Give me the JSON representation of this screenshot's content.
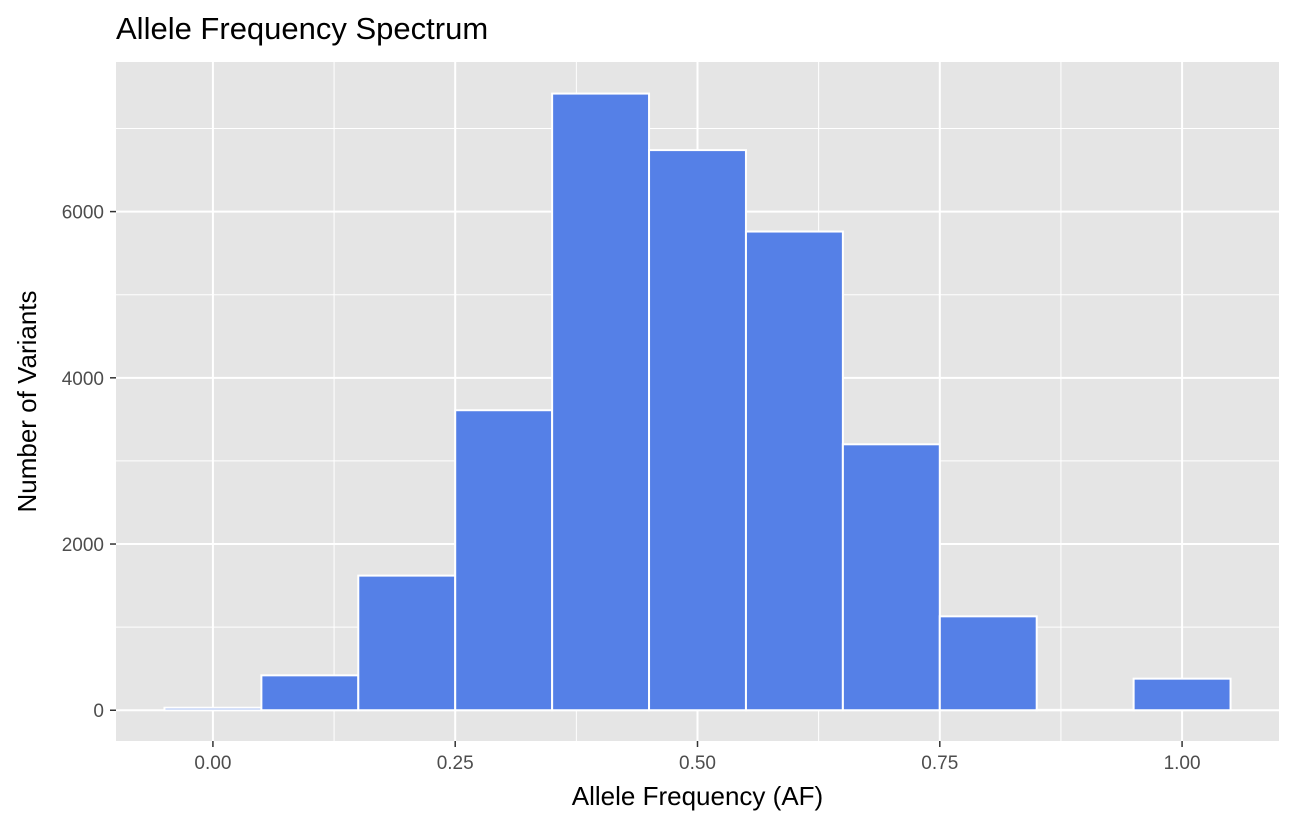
{
  "chart_data": {
    "type": "bar",
    "title": "Allele Frequency Spectrum",
    "xlabel": "Allele Frequency (AF)",
    "ylabel": "Number of Variants",
    "bin_width": 0.1,
    "bins": [
      {
        "x": 0.0,
        "count": 30
      },
      {
        "x": 0.1,
        "count": 420
      },
      {
        "x": 0.2,
        "count": 1620
      },
      {
        "x": 0.3,
        "count": 3610
      },
      {
        "x": 0.4,
        "count": 7420
      },
      {
        "x": 0.5,
        "count": 6740
      },
      {
        "x": 0.6,
        "count": 5760
      },
      {
        "x": 0.7,
        "count": 3200
      },
      {
        "x": 0.8,
        "count": 1130
      },
      {
        "x": 0.9,
        "count": 5
      },
      {
        "x": 1.0,
        "count": 380
      }
    ],
    "xlim": [
      -0.1,
      1.1
    ],
    "ylim": [
      -370,
      7800
    ],
    "x_ticks": [
      0.0,
      0.25,
      0.5,
      0.75,
      1.0
    ],
    "x_tick_labels": [
      "0.00",
      "0.25",
      "0.50",
      "0.75",
      "1.00"
    ],
    "y_ticks": [
      0,
      2000,
      4000,
      6000
    ],
    "y_tick_labels": [
      "0",
      "2000",
      "4000",
      "6000"
    ],
    "grid": true,
    "legend": "none",
    "colors": {
      "bar_fill": "#5580E7",
      "bar_outline": "#FFFFFF",
      "panel_background": "#E5E5E5",
      "grid": "#FFFFFF",
      "tick_text": "#4D4D4D"
    }
  }
}
